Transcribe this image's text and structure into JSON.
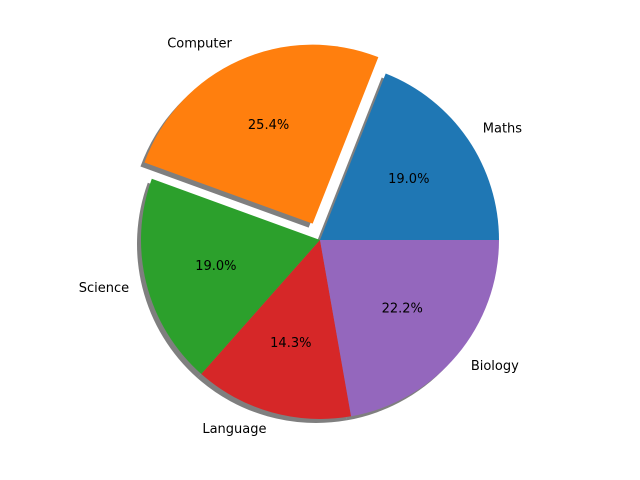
{
  "chart_data": {
    "type": "pie",
    "title": "",
    "start_angle_deg": 0,
    "direction": "counterclockwise",
    "shadow": true,
    "slices": [
      {
        "label": "Maths",
        "value": 19.0,
        "pct_text": "19.0%",
        "color": "#1f77b4",
        "explode": 0
      },
      {
        "label": "Computer",
        "value": 25.4,
        "pct_text": "25.4%",
        "color": "#ff7f0e",
        "explode": 0.1
      },
      {
        "label": "Science",
        "value": 19.0,
        "pct_text": "19.0%",
        "color": "#2ca02c",
        "explode": 0
      },
      {
        "label": "Language",
        "value": 14.3,
        "pct_text": "14.3%",
        "color": "#d62728",
        "explode": 0
      },
      {
        "label": "Biology",
        "value": 22.2,
        "pct_text": "22.2%",
        "color": "#9467bd",
        "explode": 0
      }
    ]
  }
}
